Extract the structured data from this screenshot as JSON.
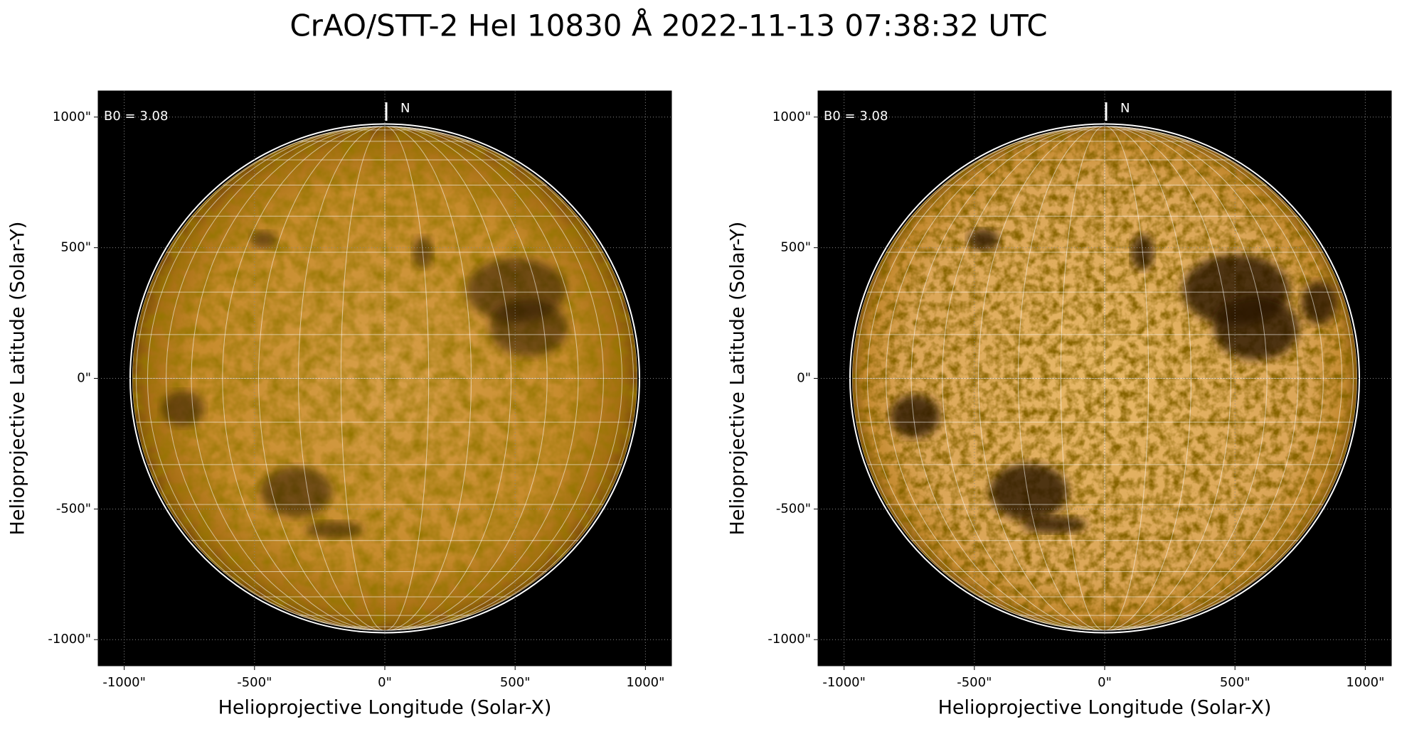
{
  "title": "CrAO/STT-2 HeI 10830 Å 2022-11-13 07:38:32 UTC",
  "chart_data": [
    {
      "type": "image",
      "xlabel": "Helioprojective Longitude (Solar-X)",
      "ylabel": "Helioprojective Latitude (Solar-Y)",
      "xlim": [
        -1100,
        1100
      ],
      "ylim": [
        -1100,
        1100
      ],
      "xticks": [
        {
          "value": -1000,
          "label": "-1000\""
        },
        {
          "value": -500,
          "label": "-500\""
        },
        {
          "value": 0,
          "label": "0\""
        },
        {
          "value": 500,
          "label": "500\""
        },
        {
          "value": 1000,
          "label": "1000\""
        }
      ],
      "yticks": [
        {
          "value": -1000,
          "label": "-1000\""
        },
        {
          "value": -500,
          "label": "-500\""
        },
        {
          "value": 0,
          "label": "0\""
        },
        {
          "value": 500,
          "label": "500\""
        },
        {
          "value": 1000,
          "label": "1000\""
        }
      ],
      "disk_radius": 969,
      "annotation": "B0 = 3.08",
      "north_label": "N",
      "grid": true
    },
    {
      "type": "image",
      "xlabel": "Helioprojective Longitude (Solar-X)",
      "ylabel": "Helioprojective Latitude (Solar-Y)",
      "xlim": [
        -1100,
        1100
      ],
      "ylim": [
        -1100,
        1100
      ],
      "xticks": [
        {
          "value": -1000,
          "label": "-1000\""
        },
        {
          "value": -500,
          "label": "-500\""
        },
        {
          "value": 0,
          "label": "0\""
        },
        {
          "value": 500,
          "label": "500\""
        },
        {
          "value": 1000,
          "label": "1000\""
        }
      ],
      "yticks": [
        {
          "value": -1000,
          "label": "-1000\""
        },
        {
          "value": -500,
          "label": "-500\""
        },
        {
          "value": 0,
          "label": "0\""
        },
        {
          "value": 500,
          "label": "500\""
        },
        {
          "value": 1000,
          "label": "1000\""
        }
      ],
      "disk_radius": 969,
      "annotation": "B0 = 3.08",
      "north_label": "N",
      "grid": true
    }
  ]
}
